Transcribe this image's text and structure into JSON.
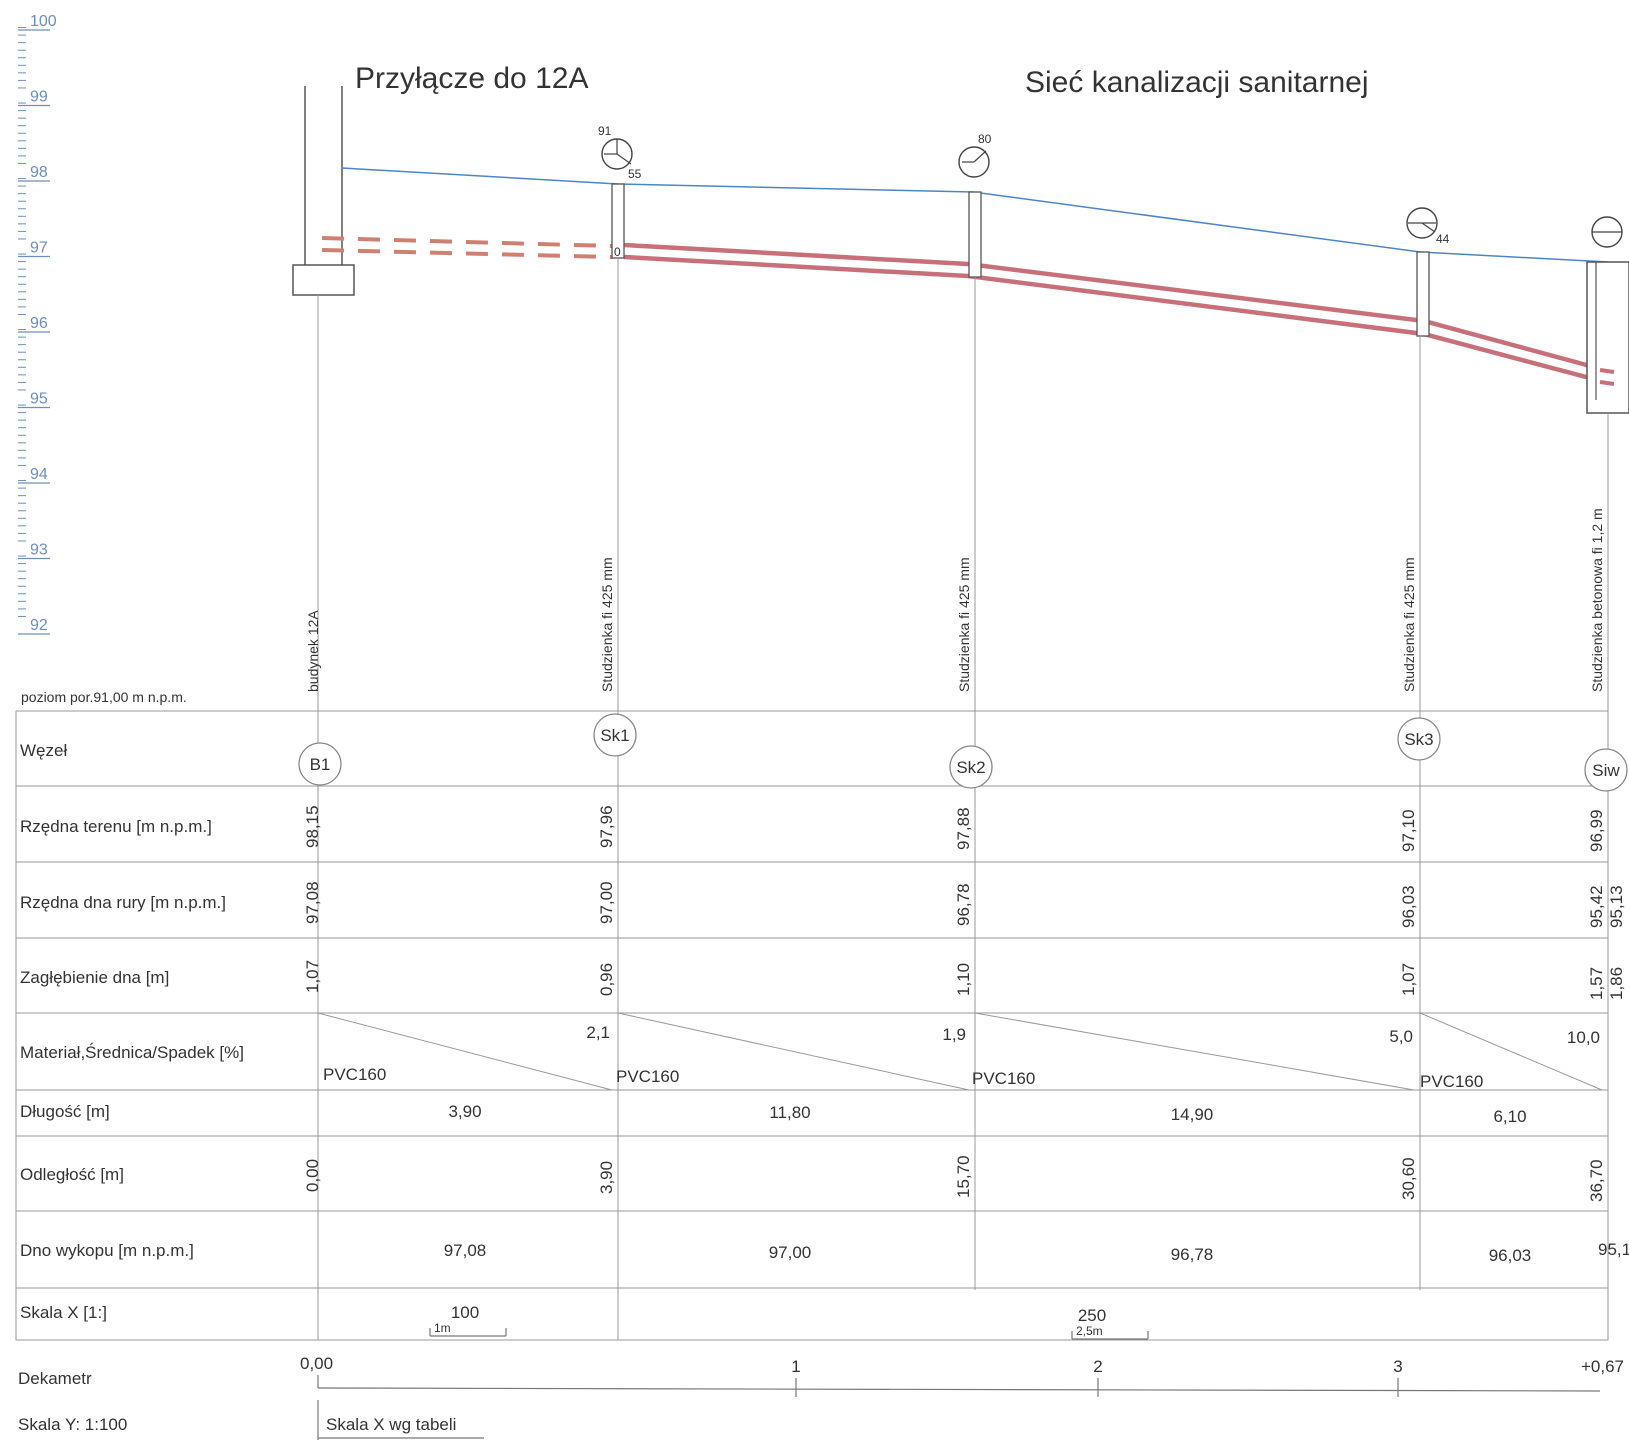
{
  "titles": {
    "connection": "Przyłącze do 12A",
    "network": "Sieć kanalizacji sanitarnej"
  },
  "ruler": {
    "labels": [
      "100",
      "99",
      "98",
      "97",
      "96",
      "95",
      "94",
      "93",
      "92"
    ]
  },
  "datum_note": "poziom por.91,00 m n.p.m.",
  "symbols": [
    {
      "node": "Sk1",
      "top_label": "91",
      "side_label": "55"
    },
    {
      "node": "Sk2",
      "top_label": "80",
      "side_label": ""
    },
    {
      "node": "Sk3",
      "top_label": "",
      "side_label": "44"
    }
  ],
  "node_descriptions": [
    "budynek 12A",
    "Studzienka fi 425 mm",
    "Studzienka fi 425 mm",
    "Studzienka fi 425 mm",
    "Studzienka betonowa fi 1,2 m"
  ],
  "rows": {
    "node": "Węzeł",
    "ground": "Rzędna terenu [m n.p.m.]",
    "invert": "Rzędna dna rury [m n.p.m.]",
    "depth": "Zagłębienie dna [m]",
    "material": "Materiał,Średnica/Spadek [%]",
    "length": "Długość [m]",
    "distance": "Odległość [m]",
    "trench": "Dno wykopu [m n.p.m.]",
    "scale_x": "Skala X [1:]"
  },
  "nodes": [
    {
      "id": "B1",
      "ground": "98,15",
      "invert": "97,08",
      "invert2": "",
      "depth": "1,07",
      "depth2": "",
      "distance": "0,00"
    },
    {
      "id": "Sk1",
      "ground": "97,96",
      "invert": "97,00",
      "invert2": "",
      "depth": "0,96",
      "depth2": "",
      "distance": "3,90"
    },
    {
      "id": "Sk2",
      "ground": "97,88",
      "invert": "96,78",
      "invert2": "",
      "depth": "1,10",
      "depth2": "",
      "distance": "15,70"
    },
    {
      "id": "Sk3",
      "ground": "97,10",
      "invert": "96,03",
      "invert2": "",
      "depth": "1,07",
      "depth2": "",
      "distance": "30,60"
    },
    {
      "id": "Siw",
      "ground": "96,99",
      "invert": "95,42",
      "invert2": "95,13",
      "depth": "1,57",
      "depth2": "1,86",
      "distance": "36,70"
    }
  ],
  "segments": [
    {
      "material": "PVC160",
      "slope": "2,1",
      "length": "3,90",
      "trench": "97,08"
    },
    {
      "material": "PVC160",
      "slope": "1,9",
      "length": "11,80",
      "trench": "97,00"
    },
    {
      "material": "PVC160",
      "slope": "5,0",
      "length": "14,90",
      "trench": "96,78"
    },
    {
      "material": "PVC160",
      "slope": "10,0",
      "length": "6,10",
      "trench": "96,03"
    }
  ],
  "trench_end": "95,1",
  "scale_x": {
    "first": "100",
    "first_bar": "1m",
    "second": "250",
    "second_bar": "2,5m"
  },
  "dekametr": {
    "label": "Dekametr",
    "start": "0,00",
    "ticks": [
      "1",
      "2",
      "3"
    ],
    "end": "+0,67"
  },
  "footer": {
    "scale_y": "Skala Y: 1:100",
    "scale_x_note": "Skala X wg tabeli"
  },
  "colors": {
    "ground_line": "#4a86c8",
    "pipe": "#c8707a",
    "grid": "#999999",
    "ruler": "#6a8fc0"
  }
}
